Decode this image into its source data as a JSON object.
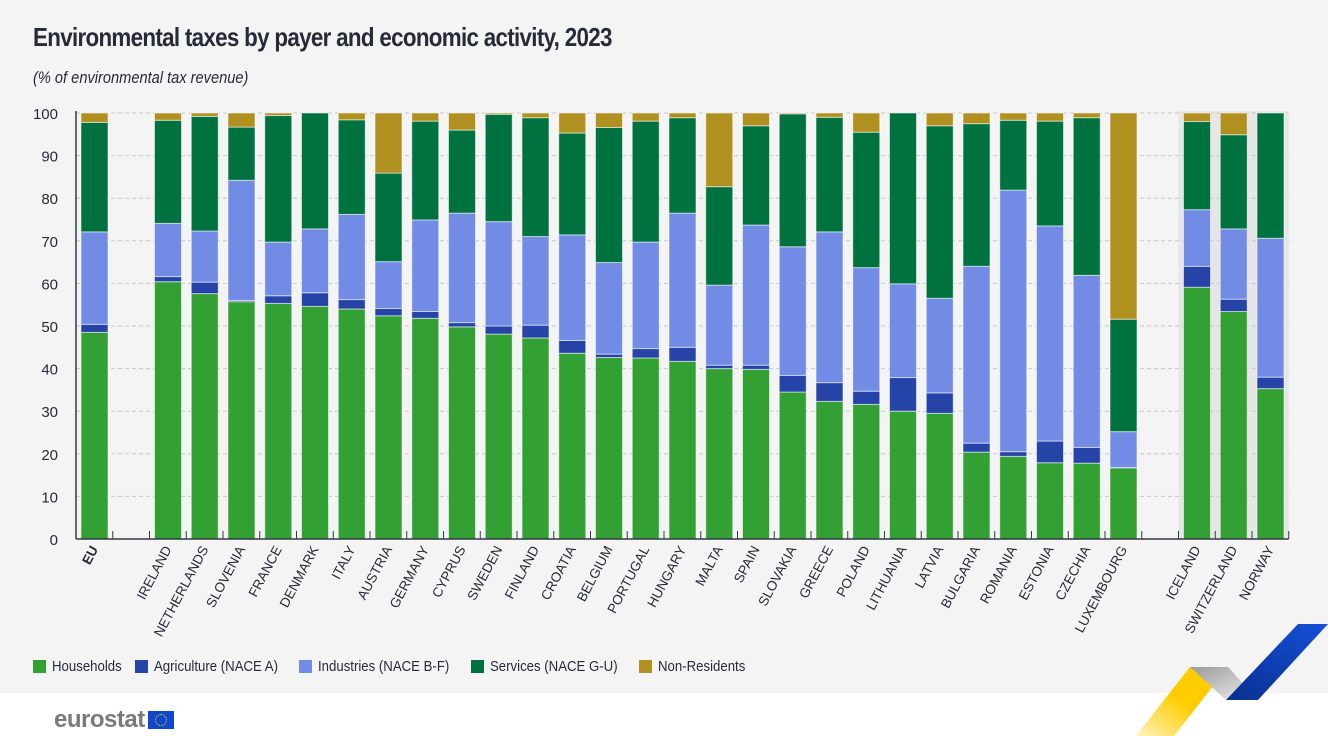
{
  "header": {
    "title": "Environmental taxes by payer and economic activity, 2023",
    "subtitle": "(% of environmental tax revenue)"
  },
  "footer": {
    "logo_text": "eurostat"
  },
  "chart_data": {
    "type": "bar",
    "stacked": true,
    "title": "Environmental taxes by payer and economic activity, 2023",
    "subtitle": "(% of environmental tax revenue)",
    "xlabel": "",
    "ylabel": "% of environmental tax revenue",
    "ylim": [
      0,
      100
    ],
    "yticks": [
      0,
      10,
      20,
      30,
      40,
      50,
      60,
      70,
      80,
      90,
      100
    ],
    "grid": true,
    "legend_position": "bottom-left",
    "categories": [
      "EU",
      "",
      "IRELAND",
      "NETHERLANDS",
      "SLOVENIA",
      "FRANCE",
      "DENMARK",
      "ITALY",
      "AUSTRIA",
      "GERMANY",
      "CYPRUS",
      "SWEDEN",
      "FINLAND",
      "CROATIA",
      "BELGIUM",
      "PORTUGAL",
      "HUNGARY",
      "MALTA",
      "SPAIN",
      "SLOVAKIA",
      "GREECE",
      "POLAND",
      "LITHUANIA",
      "LATVIA",
      "BULGARIA",
      "ROMANIA",
      "ESTONIA",
      "CZECHIA",
      "LUXEMBOURG",
      "",
      "ICELAND",
      "SWITZERLAND",
      "NORWAY"
    ],
    "bold_categories": [
      "EU"
    ],
    "shaded_categories": [
      "ICELAND",
      "SWITZERLAND",
      "NORWAY"
    ],
    "series": [
      {
        "name": "Households",
        "color": "#33a033",
        "values": [
          48.5,
          null,
          60.4,
          57.6,
          55.7,
          55.3,
          54.6,
          54.0,
          52.4,
          51.8,
          49.8,
          48.1,
          47.2,
          43.6,
          42.6,
          42.5,
          41.7,
          40.0,
          39.8,
          34.5,
          32.3,
          31.6,
          30.0,
          29.5,
          20.4,
          19.4,
          17.9,
          17.8,
          16.7,
          null,
          59.1,
          53.4,
          35.3
        ]
      },
      {
        "name": "Agriculture (NACE A)",
        "color": "#2644a7",
        "values": [
          1.9,
          null,
          1.2,
          2.7,
          0.3,
          1.8,
          3.2,
          2.2,
          1.7,
          1.6,
          1.0,
          1.9,
          3.0,
          3.0,
          0.8,
          2.2,
          3.3,
          0.8,
          1.0,
          3.9,
          4.4,
          3.1,
          7.9,
          4.8,
          2.1,
          1.1,
          5.1,
          3.7,
          0.1,
          null,
          4.9,
          2.9,
          2.7
        ]
      },
      {
        "name": "Industries (NACE B-F)",
        "color": "#728ce5",
        "values": [
          21.7,
          null,
          12.5,
          12.0,
          28.2,
          12.6,
          15.0,
          20.0,
          11.0,
          21.5,
          25.7,
          24.5,
          20.8,
          24.8,
          21.5,
          25.0,
          31.5,
          18.8,
          32.9,
          30.2,
          35.4,
          29.0,
          22.0,
          22.2,
          41.5,
          61.4,
          50.5,
          40.4,
          8.4,
          null,
          13.3,
          16.5,
          32.6
        ]
      },
      {
        "name": "Services (NACE G-U)",
        "color": "#00723f",
        "values": [
          25.7,
          null,
          24.2,
          26.9,
          12.5,
          29.7,
          27.2,
          22.2,
          20.8,
          23.2,
          19.5,
          25.2,
          27.9,
          23.9,
          31.7,
          28.4,
          22.4,
          23.1,
          23.3,
          31.2,
          26.9,
          31.8,
          40.1,
          40.5,
          33.5,
          16.4,
          24.6,
          37.0,
          26.4,
          null,
          20.7,
          22.1,
          29.4
        ]
      },
      {
        "name": "Non-Residents",
        "color": "#b09120",
        "values": [
          2.2,
          null,
          1.7,
          0.8,
          3.3,
          0.6,
          0.0,
          1.6,
          14.1,
          1.9,
          4.0,
          0.3,
          1.1,
          4.7,
          3.4,
          1.9,
          1.1,
          17.3,
          3.0,
          0.2,
          1.0,
          4.5,
          0.0,
          3.0,
          2.5,
          1.7,
          1.9,
          1.1,
          48.4,
          null,
          2.0,
          5.1,
          0.0
        ]
      }
    ]
  }
}
